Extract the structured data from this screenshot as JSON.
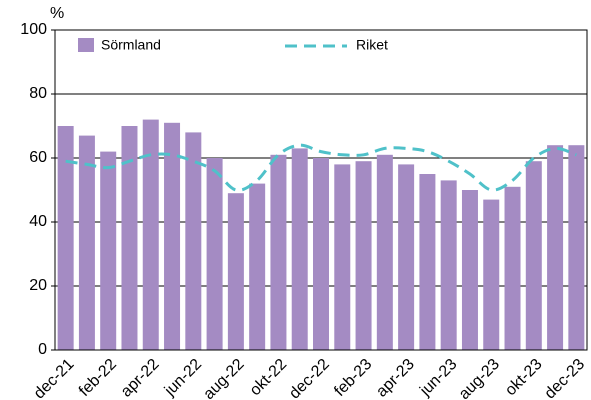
{
  "chart_data": {
    "type": "bar",
    "y_label": "%",
    "categories": [
      "dec-21",
      null,
      "feb-22",
      null,
      "apr-22",
      null,
      "jun-22",
      null,
      "aug-22",
      null,
      "okt-22",
      null,
      "dec-22",
      null,
      "feb-23",
      null,
      "apr-23",
      null,
      "jun-23",
      null,
      "aug-23",
      null,
      "okt-23",
      null,
      "dec-23"
    ],
    "series": [
      {
        "name": "Sörmland",
        "type": "bar",
        "color": "#a48bc3",
        "values": [
          70,
          67,
          62,
          70,
          72,
          71,
          68,
          60,
          49,
          52,
          61,
          63,
          60,
          58,
          59,
          61,
          58,
          55,
          53,
          50,
          47,
          51,
          59,
          64,
          64
        ]
      },
      {
        "name": "Riket",
        "type": "line",
        "color": "#4fc1c9",
        "values": [
          59,
          58,
          57,
          59,
          61,
          61,
          59,
          56,
          50,
          53,
          61,
          64,
          62,
          61,
          61,
          63,
          63,
          62,
          59,
          55,
          50,
          53,
          60,
          63,
          61
        ]
      }
    ],
    "ylim": [
      0,
      100
    ],
    "yticks": [
      0,
      20,
      40,
      60,
      80,
      100
    ],
    "grid": true
  }
}
